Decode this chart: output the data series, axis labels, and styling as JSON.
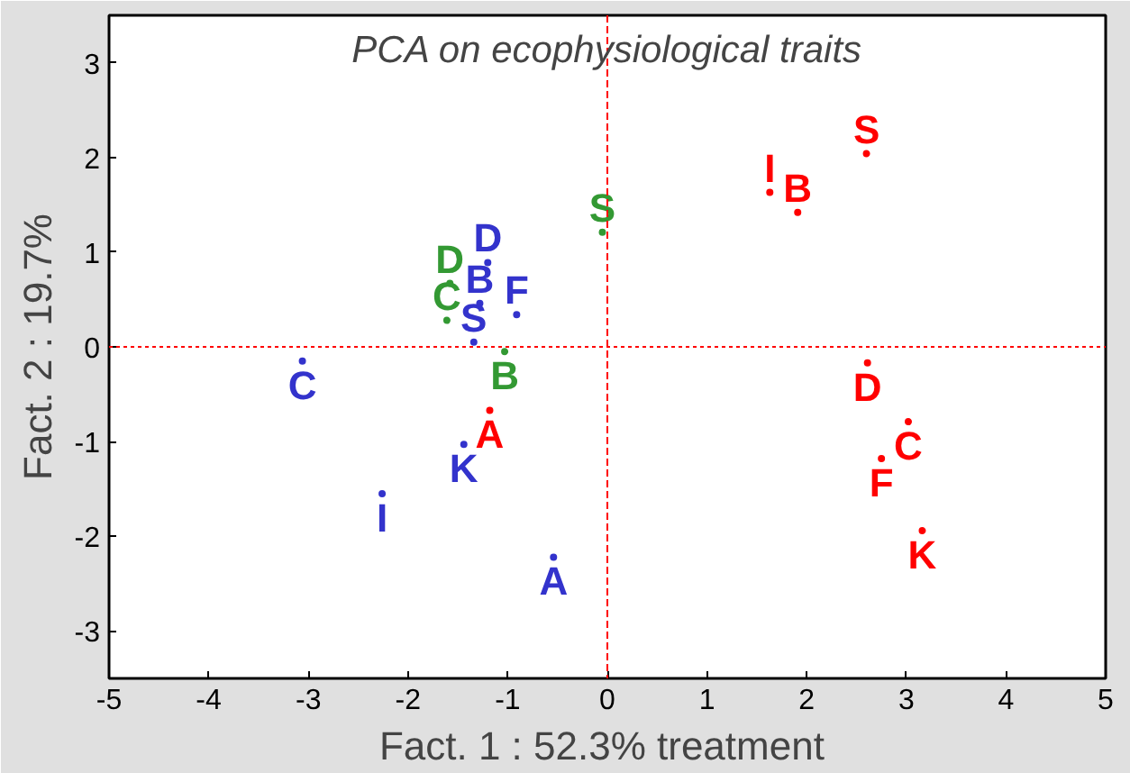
{
  "chart_data": {
    "type": "scatter",
    "title": "PCA on ecophysiological traits",
    "xlabel": "Fact. 1 : 52.3%  treatment",
    "ylabel": "Fact. 2 : 19.7%",
    "xlim": [
      -5,
      5
    ],
    "ylim": [
      -3.5,
      3.5
    ],
    "xticks": [
      -5,
      -4,
      -3,
      -2,
      -1,
      0,
      1,
      2,
      3,
      4,
      5
    ],
    "yticks": [
      -3,
      -2,
      -1,
      0,
      1,
      2,
      3
    ],
    "grid": false,
    "marker": "circle",
    "ref_lines": [
      {
        "axis": "x",
        "value": 0,
        "color": "#ff0000",
        "line_style": "dashed"
      },
      {
        "axis": "y",
        "value": 0,
        "color": "#ff0000",
        "line_style": "dotted"
      }
    ],
    "series": [
      {
        "color": "#ff0000",
        "x": [
          2.6,
          1.63,
          1.91,
          2.61,
          3.02,
          2.75,
          3.16,
          -1.18
        ],
        "values": [
          2.04,
          1.63,
          1.42,
          -0.17,
          -0.79,
          -1.18,
          -1.94,
          -0.67
        ],
        "value_labels": [
          "S",
          "I",
          "B",
          "D",
          "C",
          "F",
          "K",
          "A"
        ]
      },
      {
        "color": "#3333cc",
        "x": [
          -3.06,
          -1.2,
          -1.28,
          -0.91,
          -1.34,
          -1.44,
          -2.26,
          -0.54
        ],
        "values": [
          -0.15,
          0.89,
          0.46,
          0.34,
          0.05,
          -1.03,
          -1.55,
          -2.22
        ],
        "value_labels": [
          "C",
          "D",
          "B",
          "F",
          "S",
          "K",
          "I",
          "A"
        ]
      },
      {
        "color": "#339933",
        "x": [
          -0.05,
          -1.58,
          -1.61,
          -1.03
        ],
        "values": [
          1.21,
          0.67,
          0.28,
          -0.05
        ],
        "value_labels": [
          "S",
          "D",
          "C",
          "B"
        ]
      }
    ]
  }
}
